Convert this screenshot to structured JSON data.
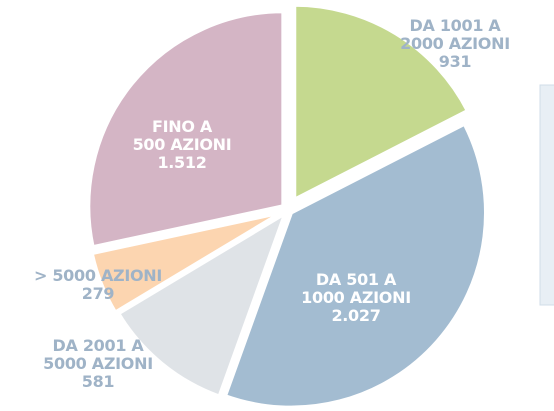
{
  "chart_data": {
    "type": "pie",
    "categories": [
      "DA 1001 A 2000 AZIONI",
      "DA 501 A 1000 AZIONI",
      "DA 2001 A 5000 AZIONI",
      "> 5000 AZIONI",
      "FINO A 500 AZIONI"
    ],
    "values": [
      931,
      2027,
      581,
      279,
      1512
    ],
    "value_labels": [
      "931",
      "2.027",
      "581",
      "279",
      "1.512"
    ],
    "colors": [
      "#c5d98f",
      "#a3bcd1",
      "#dfe3e7",
      "#fcd5b0",
      "#d4b5c5"
    ]
  }
}
